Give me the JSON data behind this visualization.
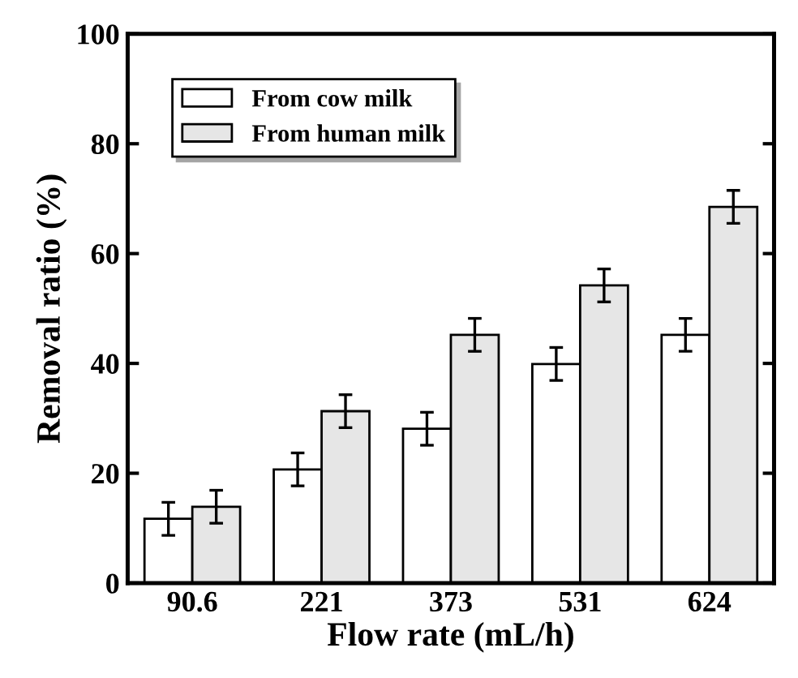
{
  "chart_data": {
    "type": "bar",
    "xlabel": "Flow rate (mL/h)",
    "ylabel": "Removal ratio (%)",
    "categories": [
      "90.6",
      "221",
      "373",
      "531",
      "624"
    ],
    "series": [
      {
        "name": "From cow milk",
        "color": "#ffffff",
        "values": [
          11.7,
          20.7,
          28.1,
          39.9,
          45.2
        ],
        "errors": [
          3,
          3,
          3,
          3,
          3
        ]
      },
      {
        "name": "From human milk",
        "color": "#e6e6e6",
        "values": [
          13.9,
          31.3,
          45.2,
          54.2,
          68.5
        ],
        "errors": [
          3,
          3,
          3,
          3,
          3
        ]
      }
    ],
    "ylim": [
      0,
      100
    ],
    "yticks": [
      0,
      20,
      40,
      60,
      80,
      100
    ],
    "grid": false,
    "legend": "top left"
  }
}
